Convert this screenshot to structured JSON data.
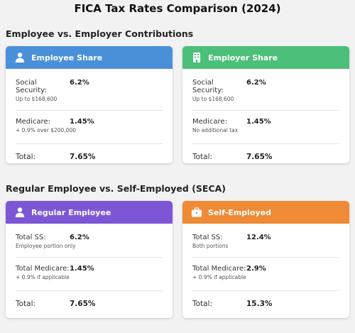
{
  "page": {
    "title": "FICA Tax Rates Comparison (2024)"
  },
  "sections": [
    {
      "heading": "Employee vs. Employer Contributions",
      "cards": [
        {
          "title": "Employee Share",
          "icon": "person-icon",
          "color": "#4a90d9",
          "rows": [
            {
              "label": "Social Security:",
              "value": "6.2%",
              "note": "Up to $168,600"
            },
            {
              "label": "Medicare:",
              "value": "1.45%",
              "note": "+ 0.9% over $200,000"
            }
          ],
          "total_label": "Total:",
          "total_value": "7.65%"
        },
        {
          "title": "Employer Share",
          "icon": "building-icon",
          "color": "#4cbf7a",
          "rows": [
            {
              "label": "Social Security:",
              "value": "6.2%",
              "note": "Up to $168,600"
            },
            {
              "label": "Medicare:",
              "value": "1.45%",
              "note": "No additional tax"
            }
          ],
          "total_label": "Total:",
          "total_value": "7.65%"
        }
      ]
    },
    {
      "heading": "Regular Employee vs. Self-Employed (SECA)",
      "cards": [
        {
          "title": "Regular Employee",
          "icon": "person-icon",
          "color": "#7d56d6",
          "rows": [
            {
              "label": "Total SS:",
              "value": "6.2%",
              "note": "Employee portion only"
            },
            {
              "label": "Total Medicare:",
              "value": "1.45%",
              "note": "+ 0.9% if applicable"
            }
          ],
          "total_label": "Total:",
          "total_value": "7.65%"
        },
        {
          "title": "Self-Employed",
          "icon": "briefcase-icon",
          "color": "#ef8a35",
          "rows": [
            {
              "label": "Total SS:",
              "value": "12.4%",
              "note": "Both portions"
            },
            {
              "label": "Total Medicare:",
              "value": "2.9%",
              "note": "+ 0.9% if applicable"
            }
          ],
          "total_label": "Total:",
          "total_value": "15.3%"
        }
      ]
    }
  ]
}
